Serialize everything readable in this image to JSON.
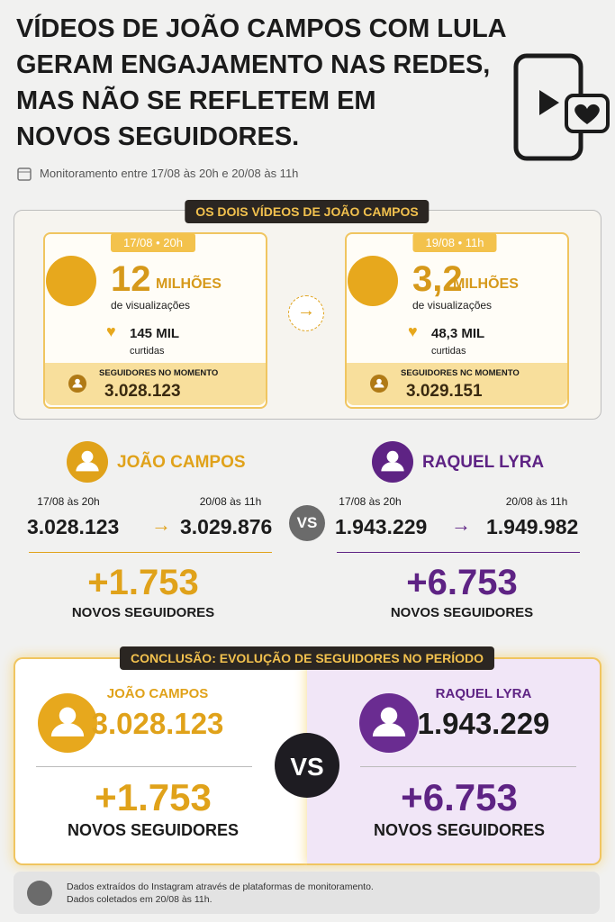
{
  "header": {
    "title_lines": [
      "VÍDEOS DE JOÃO CAMPOS COM LULA",
      "GERAM ENGAJAMENTO NAS REDES,",
      "MAS NÃO SE REFLETEM EM",
      "NOVOS SEGUIDORES."
    ],
    "period": "Monitoramento entre 17/08 às 20h e 20/08 às 11h"
  },
  "videos": {
    "label": "OS DOIS VÍDEOS DE JOÃO CAMPOS",
    "items": [
      {
        "date": "17/08 • 20h",
        "views": "12",
        "views_unit": "MILHÕES",
        "views_label": "de visualizações",
        "likes": "145 MIL",
        "likes_label": "curtidas",
        "followers_label": "SEGUIDORES NO MOMENTO",
        "followers": "3.028.123"
      },
      {
        "date": "19/08 • 11h",
        "views": "3,2",
        "views_unit": "MILHÕES",
        "views_label": "de visualizações",
        "likes": "48,3 MIL",
        "likes_label": "curtidas",
        "followers_label": "SEGUIDORES NC MOMENTO",
        "followers": "3.029.151"
      }
    ]
  },
  "comparison": {
    "vs": "VS",
    "profiles": [
      {
        "name": "JOÃO CAMPOS",
        "start_label": "17/08 às 20h",
        "end_label": "20/08 às 11h",
        "start": "3.028.123",
        "end": "3.029.876",
        "gain": "+1.753",
        "gain_label": "NOVOS SEGUIDORES"
      },
      {
        "name": "RAQUEL LYRA",
        "start_label": "17/08 às 20h",
        "end_label": "20/08 às 11h",
        "start": "1.943.229",
        "end": "1.949.982",
        "gain": "+6.753",
        "gain_label": "NOVOS SEGUIDORES"
      }
    ]
  },
  "conclusion": {
    "label": "CONCLUSÃO: EVOLUÇÃO DE SEGUIDORES NO PERÍODO",
    "vs": "VS",
    "profiles": [
      {
        "name": "JOÃO CAMPOS",
        "followers": "3.028.123",
        "gain": "+1.753",
        "gain_label": "NOVOS SEGUIDORES"
      },
      {
        "name": "RAQUEL LYRA",
        "followers": "1.943.229",
        "gain": "+6.753",
        "gain_label": "NOVOS SEGUIDORES"
      }
    ]
  },
  "footer": {
    "lines": [
      "Dados extraídos do Instagram através de plataformas de monitoramento.",
      "Dados coletados em 20/08 às 11h."
    ]
  }
}
